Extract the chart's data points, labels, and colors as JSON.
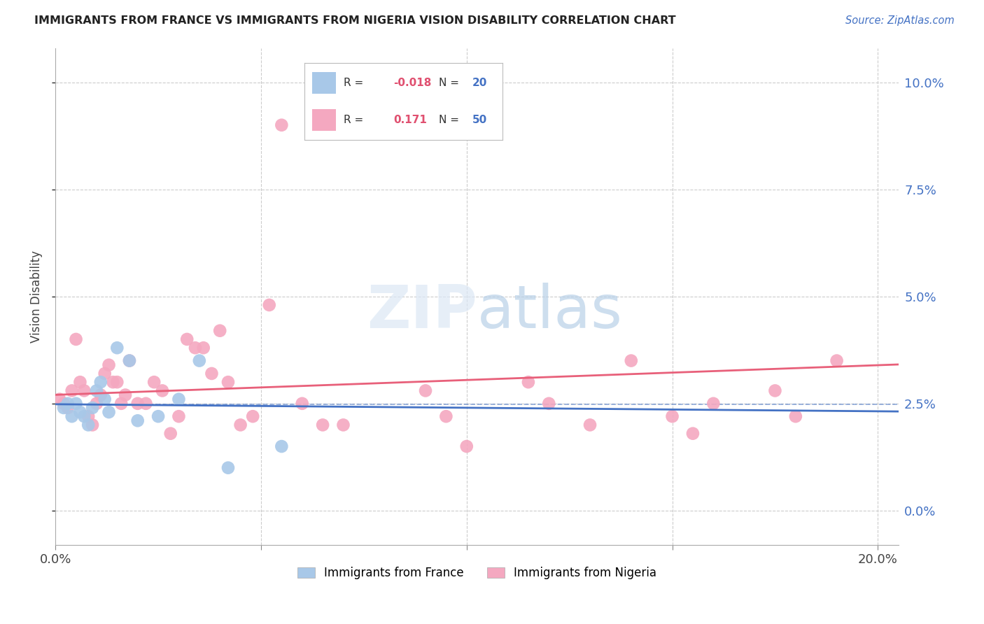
{
  "title": "IMMIGRANTS FROM FRANCE VS IMMIGRANTS FROM NIGERIA VISION DISABILITY CORRELATION CHART",
  "source": "Source: ZipAtlas.com",
  "ylabel": "Vision Disability",
  "france_color": "#a8c8e8",
  "nigeria_color": "#f4a8c0",
  "france_line_color": "#4472c4",
  "nigeria_line_color": "#e8607a",
  "france_dash_color": "#4472c4",
  "france_R": -0.018,
  "france_N": 20,
  "nigeria_R": 0.171,
  "nigeria_N": 50,
  "xlim": [
    0.0,
    0.205
  ],
  "ylim": [
    -0.008,
    0.108
  ],
  "ytick_values": [
    0.0,
    0.025,
    0.05,
    0.075,
    0.1
  ],
  "xtick_values": [
    0.0,
    0.05,
    0.1,
    0.15,
    0.2
  ],
  "france_x": [
    0.002,
    0.003,
    0.004,
    0.005,
    0.006,
    0.007,
    0.008,
    0.009,
    0.01,
    0.011,
    0.012,
    0.013,
    0.015,
    0.018,
    0.02,
    0.025,
    0.03,
    0.035,
    0.042,
    0.055
  ],
  "france_y": [
    0.024,
    0.025,
    0.022,
    0.025,
    0.023,
    0.022,
    0.02,
    0.024,
    0.028,
    0.03,
    0.026,
    0.023,
    0.038,
    0.035,
    0.021,
    0.022,
    0.026,
    0.035,
    0.01,
    0.015
  ],
  "nigeria_x": [
    0.001,
    0.002,
    0.003,
    0.004,
    0.005,
    0.006,
    0.007,
    0.008,
    0.009,
    0.01,
    0.011,
    0.012,
    0.013,
    0.014,
    0.015,
    0.016,
    0.017,
    0.018,
    0.02,
    0.022,
    0.024,
    0.026,
    0.028,
    0.03,
    0.032,
    0.034,
    0.036,
    0.038,
    0.04,
    0.042,
    0.045,
    0.048,
    0.052,
    0.055,
    0.06,
    0.065,
    0.07,
    0.09,
    0.095,
    0.1,
    0.115,
    0.12,
    0.13,
    0.14,
    0.15,
    0.155,
    0.16,
    0.175,
    0.18,
    0.19
  ],
  "nigeria_y": [
    0.026,
    0.025,
    0.024,
    0.028,
    0.04,
    0.03,
    0.028,
    0.022,
    0.02,
    0.025,
    0.027,
    0.032,
    0.034,
    0.03,
    0.03,
    0.025,
    0.027,
    0.035,
    0.025,
    0.025,
    0.03,
    0.028,
    0.018,
    0.022,
    0.04,
    0.038,
    0.038,
    0.032,
    0.042,
    0.03,
    0.02,
    0.022,
    0.048,
    0.09,
    0.025,
    0.02,
    0.02,
    0.028,
    0.022,
    0.015,
    0.03,
    0.025,
    0.02,
    0.035,
    0.022,
    0.018,
    0.025,
    0.028,
    0.022,
    0.035
  ]
}
